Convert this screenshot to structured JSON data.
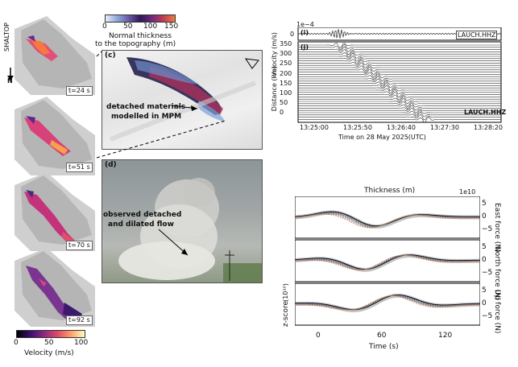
{
  "left": {
    "model_label": "SHALTOP",
    "north_label": "N",
    "times": [
      "t=24 s",
      "t=51 s",
      "t=70 s",
      "t=92 s"
    ],
    "colorbar": {
      "ticks": [
        "0",
        "50",
        "100"
      ],
      "label": "Velocity (m/s)"
    }
  },
  "top_colorbar": {
    "ticks": [
      "0",
      "50",
      "100",
      "150"
    ],
    "label_line1": "Normal thickness",
    "label_line2": "to the topography (m)"
  },
  "panel_c": {
    "tag": "(c)",
    "annotation_line1": "detached materials",
    "annotation_line2": "modelled in MPM"
  },
  "panel_d": {
    "tag": "(d)",
    "annotation_line1": "observed detached",
    "annotation_line2": "and dilated flow"
  },
  "seismic": {
    "exponent": "1e−4",
    "tag_i": "(i)",
    "tag_j": "(j)",
    "station_label": "LAUCH.HHZ",
    "velocity_axis_label": "Velocity\n(m/s)",
    "distance_axis_label": "Distance (km)",
    "yticks_top": [
      "0"
    ],
    "yticks_bottom": [
      "350",
      "300",
      "250",
      "200",
      "150",
      "100",
      "50",
      "0"
    ],
    "xticks": [
      "13:25:00",
      "13:25:50",
      "13:26:40",
      "13:27:30",
      "13:28:20"
    ],
    "xlabel": "Time on 28 May 2025(UTC)"
  },
  "forces": {
    "title": "Thickness (m)",
    "exponent": "1e10",
    "rows": [
      {
        "label_line1": "East",
        "label_line2": "force (N)",
        "yticks": [
          "5",
          "0",
          "−5"
        ]
      },
      {
        "label_line1": "North",
        "label_line2": "force (N)",
        "yticks": [
          "5",
          "0",
          "−5"
        ]
      },
      {
        "label_line1": "Up",
        "label_line2": "force (N)",
        "yticks": [
          "5",
          "0",
          "−5"
        ]
      }
    ],
    "left_label": "z-score",
    "left_exponent": "(10¹⁰)",
    "xticks": [
      "0",
      "60",
      "120"
    ],
    "xlabel": "Time (s)"
  }
}
